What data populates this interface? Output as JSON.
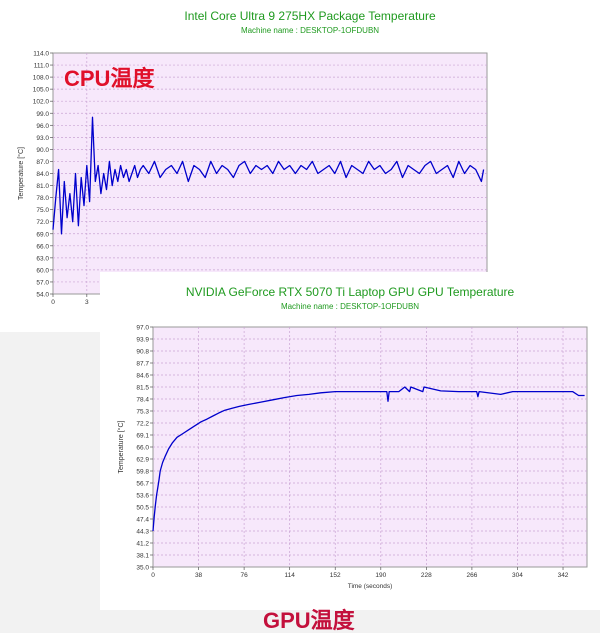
{
  "charts": {
    "cpu": {
      "title": "Intel Core Ultra 9 275HX Package Temperature",
      "subtitle": "Machine name : DESKTOP-1OFDUBN",
      "overlay_label": "CPU温度"
    },
    "gpu": {
      "title": "NVIDIA GeForce RTX 5070 Ti Laptop GPU GPU Temperature",
      "subtitle": "Machine name : DESKTOP-1OFDUBN",
      "overlay_label": "GPU温度"
    }
  },
  "chart_data": [
    {
      "type": "line",
      "title": "Intel Core Ultra 9 275HX Package Temperature",
      "subtitle": "Machine name : DESKTOP-1OFDUBN",
      "ylabel": "Temperature [°C]",
      "xlabel": "",
      "ylim": [
        54.0,
        114.0
      ],
      "xlim": [
        0,
        38.5
      ],
      "yticks": [
        "54.0",
        "57.0",
        "60.0",
        "63.0",
        "66.0",
        "69.0",
        "72.0",
        "75.0",
        "78.0",
        "81.0",
        "84.0",
        "87.0",
        "90.0",
        "93.0",
        "96.0",
        "99.0",
        "102.0",
        "105.0",
        "108.0",
        "111.0",
        "114.0"
      ],
      "xticks": [
        {
          "value": 0,
          "label": "0"
        },
        {
          "value": 3,
          "label": "3"
        }
      ],
      "grid": true,
      "background": "#f7e8fb",
      "line_color": "#0000cc",
      "series": [
        {
          "x": [
            0,
            0.25,
            0.5,
            0.75,
            1,
            1.25,
            1.5,
            1.75,
            2,
            2.25,
            2.5,
            2.75,
            3,
            3.25,
            3.5,
            3.75,
            4,
            4.25,
            4.5,
            4.75,
            5,
            5.25,
            5.5,
            5.75,
            6,
            6.25,
            6.5,
            6.75,
            7,
            7.25,
            7.5,
            7.75,
            8,
            8.5,
            9,
            9.5,
            10,
            10.5,
            11,
            11.5,
            12,
            12.5,
            13,
            13.5,
            14,
            14.5,
            15,
            15.5,
            16,
            16.5,
            17,
            17.5,
            18,
            18.5,
            19,
            19.5,
            20,
            20.5,
            21,
            21.5,
            22,
            22.5,
            23,
            23.5,
            24,
            24.5,
            25,
            25.5,
            26,
            26.5,
            27,
            27.5,
            28,
            28.5,
            29,
            29.5,
            30,
            30.5,
            31,
            31.5,
            32,
            32.5,
            33,
            33.5,
            34,
            34.5,
            35,
            35.5,
            36,
            36.5,
            37,
            37.5,
            38,
            38.2
          ],
          "values": [
            70,
            78,
            85,
            69,
            82,
            73,
            79,
            72,
            84,
            71,
            83,
            76,
            86,
            77,
            98,
            82,
            86,
            79,
            84,
            80,
            87,
            81,
            85,
            82,
            86,
            83,
            85,
            82,
            84,
            86,
            83,
            85,
            86,
            84,
            87,
            83,
            85,
            86,
            84,
            87,
            82,
            86,
            85,
            83,
            87,
            84,
            86,
            85,
            83,
            86,
            87,
            84,
            86,
            85,
            86,
            84,
            87,
            85,
            86,
            84,
            86,
            85,
            87,
            84,
            85,
            86,
            84,
            87,
            83,
            86,
            85,
            84,
            87,
            85,
            86,
            84,
            85,
            87,
            83,
            86,
            85,
            84,
            86,
            87,
            84,
            85,
            86,
            83,
            87,
            84,
            86,
            85,
            82,
            85
          ]
        }
      ]
    },
    {
      "type": "line",
      "title": "NVIDIA GeForce RTX 5070 Ti Laptop GPU GPU Temperature",
      "subtitle": "Machine name : DESKTOP-1OFDUBN",
      "ylabel": "Temperature [°C]",
      "xlabel": "Time (seconds)",
      "ylim": [
        35.0,
        97.0
      ],
      "xlim": [
        0,
        362
      ],
      "yticks": [
        "35.0",
        "38.1",
        "41.2",
        "44.3",
        "47.4",
        "50.5",
        "53.6",
        "56.7",
        "59.8",
        "62.9",
        "66.0",
        "69.1",
        "72.2",
        "75.3",
        "78.4",
        "81.5",
        "84.6",
        "87.7",
        "90.8",
        "93.9",
        "97.0"
      ],
      "xticks": [
        {
          "value": 0,
          "label": "0"
        },
        {
          "value": 38,
          "label": "38"
        },
        {
          "value": 76,
          "label": "76"
        },
        {
          "value": 114,
          "label": "114"
        },
        {
          "value": 152,
          "label": "152"
        },
        {
          "value": 190,
          "label": "190"
        },
        {
          "value": 228,
          "label": "228"
        },
        {
          "value": 266,
          "label": "266"
        },
        {
          "value": 304,
          "label": "304"
        },
        {
          "value": 342,
          "label": "342"
        }
      ],
      "grid": true,
      "background": "#f7e8fb",
      "line_color": "#0000cc",
      "series": [
        {
          "x": [
            0,
            1,
            2,
            3,
            4,
            5,
            6,
            8,
            10,
            13,
            16,
            20,
            25,
            30,
            35,
            40,
            45,
            50,
            55,
            60,
            66,
            72,
            80,
            90,
            100,
            110,
            120,
            130,
            140,
            152,
            165,
            180,
            195,
            196,
            197,
            205,
            210,
            214,
            215,
            225,
            226,
            240,
            255,
            270,
            271,
            272,
            290,
            300,
            320,
            340,
            350,
            355,
            360
          ],
          "values": [
            44.3,
            48.0,
            51.0,
            53.6,
            55.5,
            57.5,
            59.8,
            62.0,
            63.5,
            65.5,
            67.0,
            68.5,
            69.5,
            70.5,
            71.5,
            72.5,
            73.2,
            74.0,
            74.8,
            75.5,
            76.0,
            76.5,
            77.0,
            77.6,
            78.2,
            78.8,
            79.3,
            79.6,
            80.0,
            80.3,
            80.3,
            80.3,
            80.3,
            77.8,
            80.3,
            80.3,
            81.5,
            80.3,
            81.5,
            80.3,
            81.5,
            80.5,
            80.3,
            80.3,
            79.0,
            80.3,
            79.6,
            80.3,
            80.3,
            80.3,
            80.3,
            79.3,
            79.3
          ]
        }
      ]
    }
  ]
}
